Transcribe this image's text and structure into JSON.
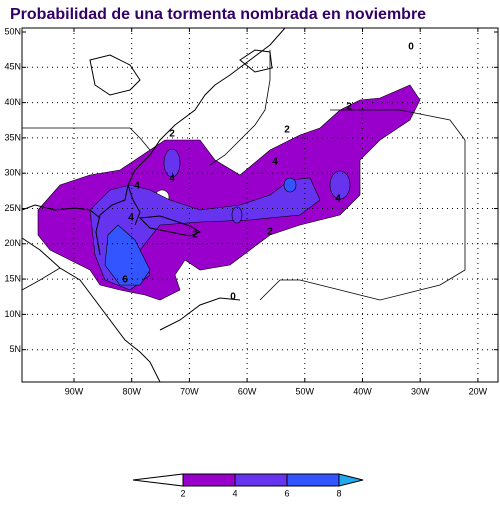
{
  "title": "Probabilidad de una tormenta nombrada en noviembre",
  "lat_labels": [
    "50N",
    "45N",
    "40N",
    "35N",
    "30N",
    "25N",
    "20N",
    "15N",
    "10N",
    "5N"
  ],
  "lon_labels": [
    "90W",
    "80W",
    "70W",
    "60W",
    "50W",
    "40W",
    "30W",
    "20W"
  ],
  "contour_labels": [
    0,
    2,
    2,
    2,
    4,
    4,
    4,
    4,
    4,
    2,
    2,
    6,
    0
  ],
  "colorbar": {
    "levels": [
      2,
      4,
      6,
      8
    ],
    "colors": [
      "#ffffff",
      "#9900cc",
      "#6633ee",
      "#3355ff",
      "#22aaee"
    ]
  }
}
